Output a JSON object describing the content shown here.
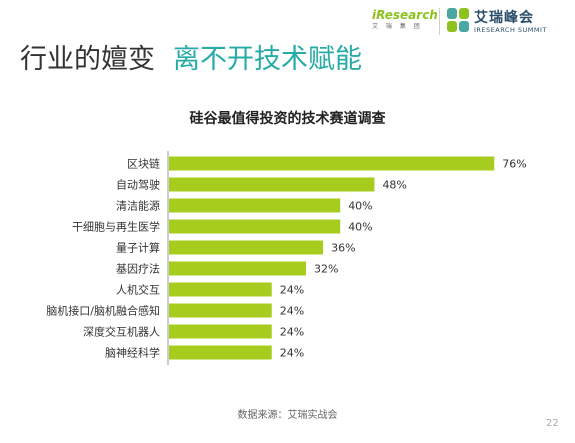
{
  "header": {
    "logo_iresearch": "iResearch",
    "logo_iresearch_sub": "艾 瑞 集 团",
    "logo_summit_cn": "艾瑞峰会",
    "logo_summit_en": "IRESEARCH SUMMIT"
  },
  "slide": {
    "title_main": "行业的嬗变",
    "title_accent": "离不开技术赋能",
    "source": "数据来源：艾瑞实战会",
    "page_number": "22"
  },
  "colors": {
    "bar": "#a6cc1e",
    "accent": "#27aba6",
    "axis": "#999999"
  },
  "chart_data": {
    "type": "bar",
    "orientation": "horizontal",
    "title": "硅谷最值得投资的技术赛道调查",
    "categories": [
      "区块链",
      "自动驾驶",
      "清洁能源",
      "干细胞与再生医学",
      "量子计算",
      "基因疗法",
      "人机交互",
      "脑机接口/脑机融合感知",
      "深度交互机器人",
      "脑神经科学"
    ],
    "values": [
      76,
      48,
      40,
      40,
      36,
      32,
      24,
      24,
      24,
      24
    ],
    "value_labels": [
      "76%",
      "48%",
      "40%",
      "40%",
      "36%",
      "32%",
      "24%",
      "24%",
      "24%",
      "24%"
    ],
    "unit": "%",
    "xlim": [
      0,
      100
    ],
    "grid": false,
    "legend": "none"
  }
}
